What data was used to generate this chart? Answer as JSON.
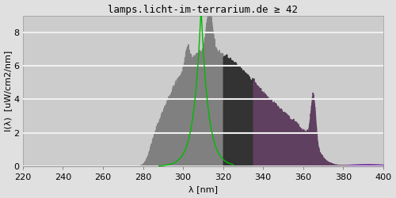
{
  "title": "lamps.licht-im-terrarium.de ≥ 42",
  "xlabel": "λ [nm]",
  "ylabel": "I(λ)  [uW/cm2/nm]",
  "xlim": [
    220,
    400
  ],
  "ylim": [
    0,
    9
  ],
  "yticks": [
    0,
    2,
    4,
    6,
    8
  ],
  "xticks": [
    220,
    240,
    260,
    280,
    300,
    320,
    340,
    360,
    380,
    400
  ],
  "bg_color": "#e0e0e0",
  "plot_bg_color": "#cccccc",
  "uvb_color": "#808080",
  "uva_dark_color": "#333333",
  "uva_purple_color": "#604060",
  "purple_color": "#7030a0",
  "green_line_color": "#00bb00",
  "title_fontsize": 9,
  "axis_fontsize": 8,
  "tick_fontsize": 8,
  "grid_color": "#f0f0f0"
}
